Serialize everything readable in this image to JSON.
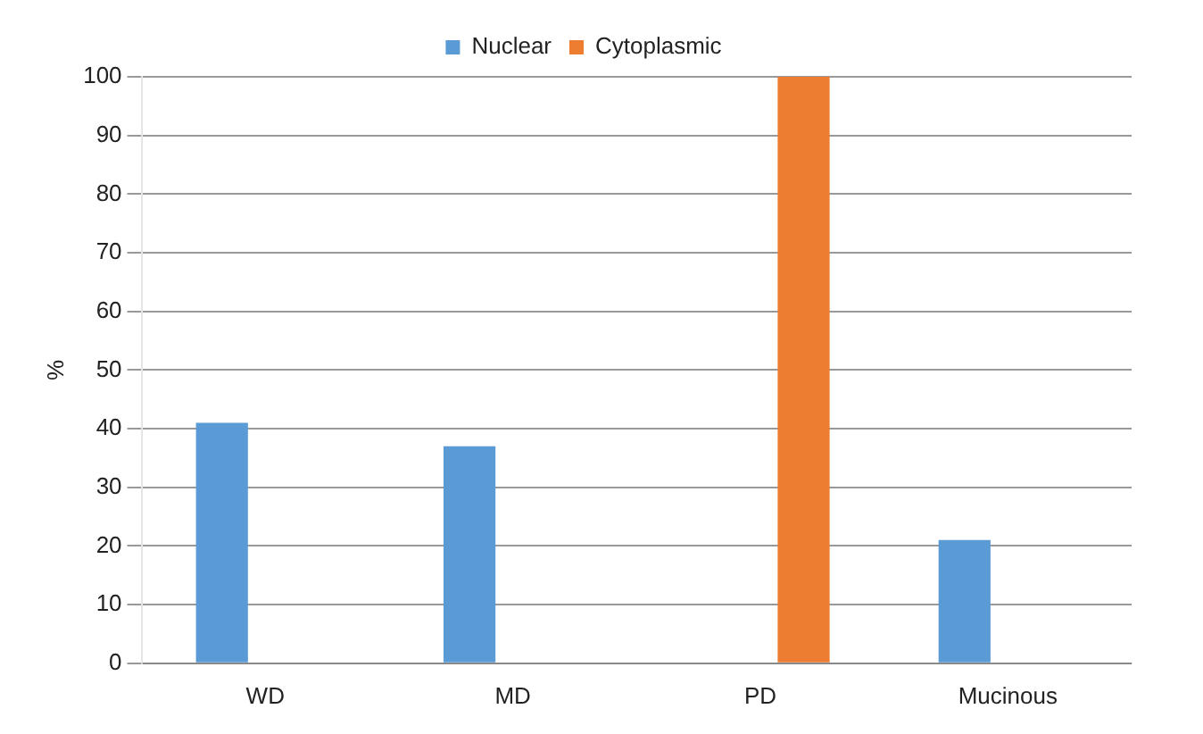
{
  "chart_data": {
    "type": "bar",
    "ylabel": "%",
    "categories": [
      "WD",
      "MD",
      "PD",
      "Mucinous"
    ],
    "series": [
      {
        "name": "Nuclear",
        "color": "#5b9bd5",
        "values": [
          41,
          37,
          0,
          21
        ]
      },
      {
        "name": "Cytoplasmic",
        "color": "#ed7d31",
        "values": [
          0,
          0,
          100,
          0
        ]
      }
    ],
    "ylim": [
      0,
      100
    ],
    "yticks": [
      0,
      10,
      20,
      30,
      40,
      50,
      60,
      70,
      80,
      90,
      100
    ],
    "grid": "y",
    "legend": "top"
  }
}
